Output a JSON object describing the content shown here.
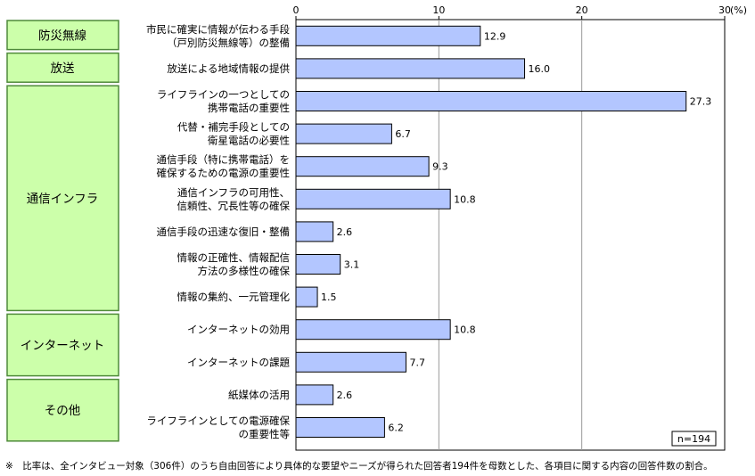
{
  "chart_data": {
    "type": "bar",
    "orientation": "horizontal",
    "unit_label": "(%)",
    "xlim": [
      0,
      30
    ],
    "xticks": [
      "0",
      "10",
      "20",
      "30"
    ],
    "grid": true,
    "n_label": "n=194",
    "colors": {
      "bar_fill": "#b3c6ff",
      "bar_stroke": "#000000",
      "group_fill": "#ccffaa",
      "group_stroke": "#4f8a3a"
    },
    "groups": [
      {
        "label": "防災無線",
        "count": 1
      },
      {
        "label": "放送",
        "count": 1
      },
      {
        "label": "通信インフラ",
        "count": 7
      },
      {
        "label": "インターネット",
        "count": 2
      },
      {
        "label": "その他",
        "count": 2
      }
    ],
    "categories": [
      [
        "市民に確実に情報が伝わる手段",
        "（戸別防災無線等）の整備"
      ],
      [
        "放送による地域情報の提供"
      ],
      [
        "ライフラインの一つとしての",
        "携帯電話の重要性"
      ],
      [
        "代替・補完手段としての",
        "衛星電話の必要性"
      ],
      [
        "通信手段（特に携帯電話）を",
        "確保するための電源の重要性"
      ],
      [
        "通信インフラの可用性、",
        "信頼性、冗長性等の確保"
      ],
      [
        "通信手段の迅速な復旧・整備"
      ],
      [
        "情報の正確性、情報配信",
        "方法の多様性の確保"
      ],
      [
        "情報の集約、一元管理化"
      ],
      [
        "インターネットの効用"
      ],
      [
        "インターネットの課題"
      ],
      [
        "紙媒体の活用"
      ],
      [
        "ライフラインとしての電源確保",
        "の重要性等"
      ]
    ],
    "values": [
      12.9,
      16.0,
      27.3,
      6.7,
      9.3,
      10.8,
      2.6,
      3.1,
      1.5,
      10.8,
      7.7,
      2.6,
      6.2
    ],
    "value_labels": [
      "12.9",
      "16.0",
      "27.3",
      "6.7",
      "9.3",
      "10.8",
      "2.6",
      "3.1",
      "1.5",
      "10.8",
      "7.7",
      "2.6",
      "6.2"
    ]
  },
  "footnote": "※　比率は、全インタビュー対象（306件）のうち自由回答により具体的な要望やニーズが得られた回答者194件を母数とした、各項目に関する内容の回答件数の割合。"
}
